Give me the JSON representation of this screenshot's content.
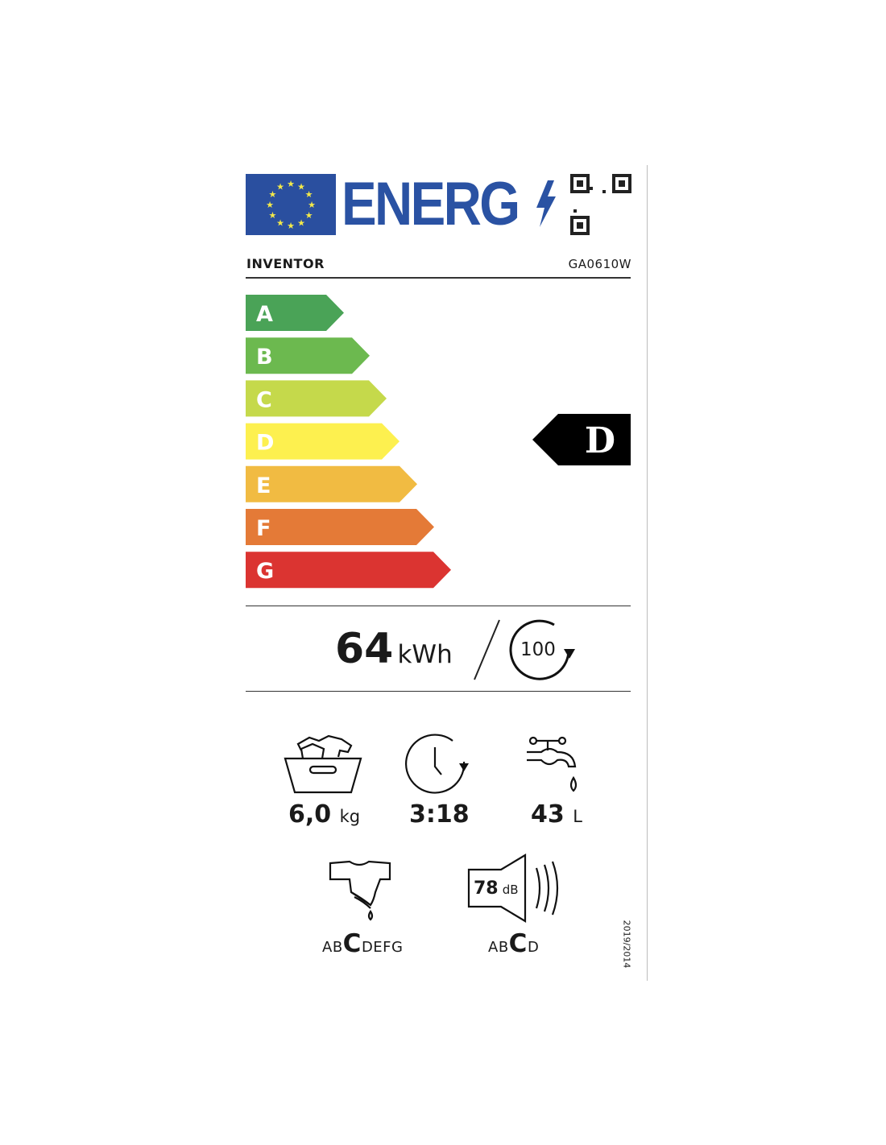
{
  "header": {
    "energy_word": "ENERG",
    "icons": [
      "eu-flag-icon",
      "lightning-icon",
      "qr-code-icon"
    ]
  },
  "supplier": {
    "brand": "INVENTOR",
    "model": "GA0610W"
  },
  "scale": {
    "classes": [
      {
        "letter": "A",
        "color": "#4aa357"
      },
      {
        "letter": "B",
        "color": "#6cb94f"
      },
      {
        "letter": "C",
        "color": "#c5d94b"
      },
      {
        "letter": "D",
        "color": "#fdf04f"
      },
      {
        "letter": "E",
        "color": "#f1bb42"
      },
      {
        "letter": "F",
        "color": "#e47a37"
      },
      {
        "letter": "G",
        "color": "#db3431"
      }
    ],
    "rating": "D"
  },
  "energy": {
    "value": "64",
    "unit": "kWh",
    "cycles": "100"
  },
  "specs": {
    "capacity": {
      "value": "6,0",
      "unit": "kg",
      "icon": "laundry-basket-icon"
    },
    "duration": {
      "value": "3:18",
      "icon": "clock-icon"
    },
    "water": {
      "value": "43",
      "unit": "L",
      "icon": "water-tap-icon"
    }
  },
  "spin": {
    "icon": "spin-shirt-icon",
    "pre": "AB",
    "selected": "C",
    "post": "DEFG"
  },
  "noise": {
    "icon": "speaker-icon",
    "value": "78",
    "unit": "dB",
    "pre": "AB",
    "selected": "C",
    "post": "D"
  },
  "regulation": "2019/2014"
}
